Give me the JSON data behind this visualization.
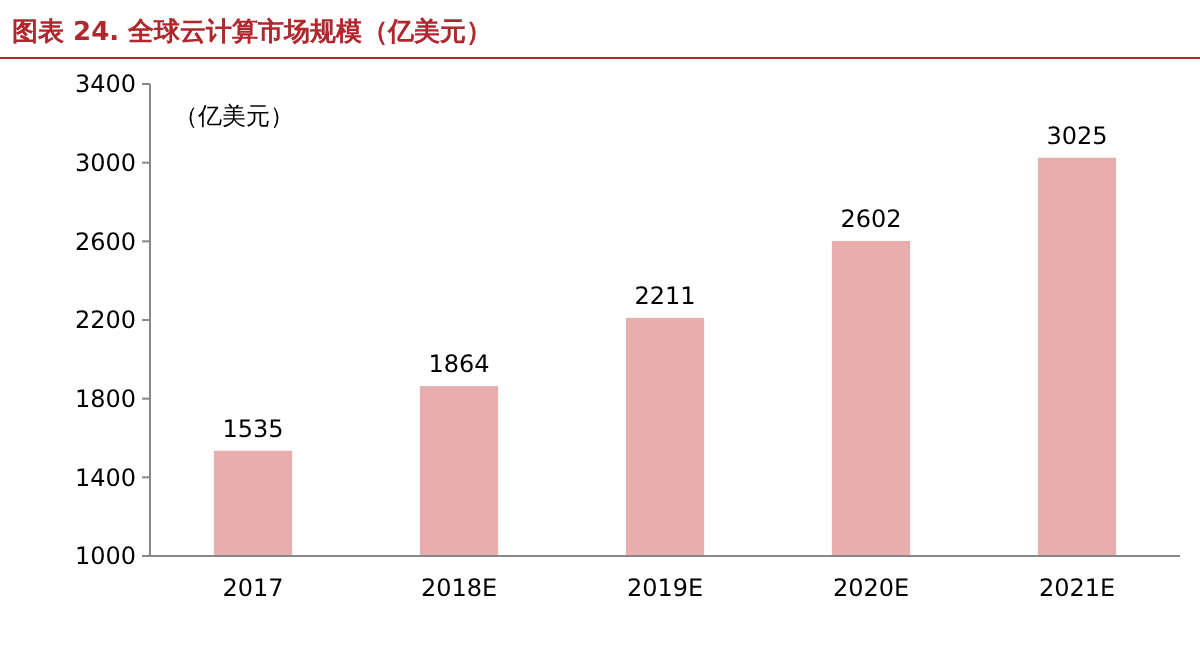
{
  "chart_data": {
    "type": "bar",
    "title": "图表 24. 全球云计算市场规模（亿美元）",
    "ylabel": "（亿美元）",
    "categories": [
      "2017",
      "2018E",
      "2019E",
      "2020E",
      "2021E"
    ],
    "values": [
      1535,
      1864,
      2211,
      2602,
      3025
    ],
    "color": "#e8aeae",
    "ylim": [
      1000,
      3400
    ],
    "yticks": [
      1000,
      1400,
      1800,
      2200,
      2600,
      3000,
      3400
    ],
    "data_labels": true,
    "grid": false
  }
}
